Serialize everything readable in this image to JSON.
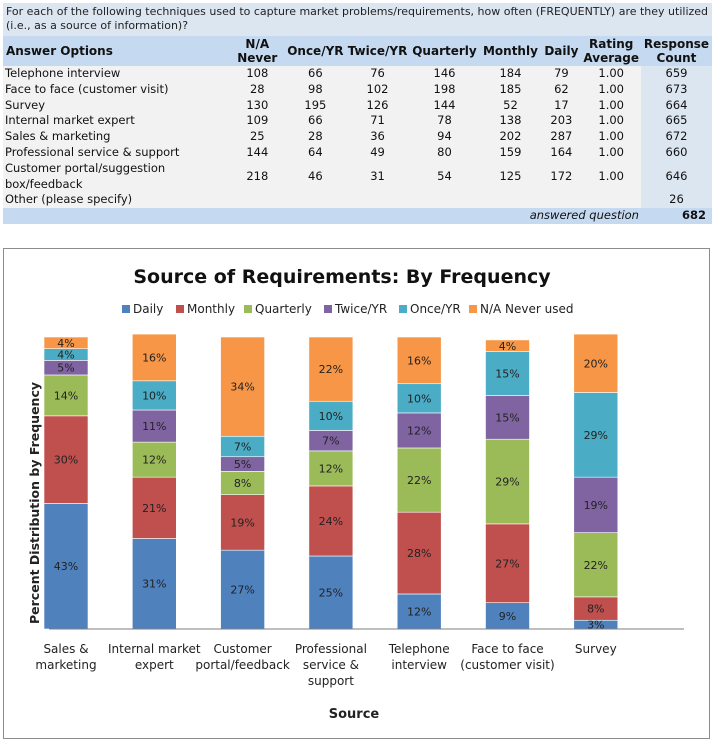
{
  "survey": {
    "question": "For each of the following techniques used to capture market problems/requirements, how often (FREQUENTLY) are they utilized (i.e., as a source of information)?",
    "headers": {
      "answer_options": "Answer Options",
      "na_line1": "N/A",
      "na_line2": "Never",
      "once": "Once/YR",
      "twice": "Twice/YR",
      "quarterly": "Quarterly",
      "monthly": "Monthly",
      "daily": "Daily",
      "rating_line1": "Rating",
      "rating_line2": "Average",
      "response_line1": "Response",
      "response_line2": "Count"
    },
    "rows": [
      {
        "option": "Telephone interview",
        "na": "108",
        "once": "66",
        "twice": "76",
        "quarterly": "146",
        "monthly": "184",
        "daily": "79",
        "rating": "1.00",
        "count": "659"
      },
      {
        "option": "Face to face (customer visit)",
        "na": "28",
        "once": "98",
        "twice": "102",
        "quarterly": "198",
        "monthly": "185",
        "daily": "62",
        "rating": "1.00",
        "count": "673"
      },
      {
        "option": "Survey",
        "na": "130",
        "once": "195",
        "twice": "126",
        "quarterly": "144",
        "monthly": "52",
        "daily": "17",
        "rating": "1.00",
        "count": "664"
      },
      {
        "option": "Internal market expert",
        "na": "109",
        "once": "66",
        "twice": "71",
        "quarterly": "78",
        "monthly": "138",
        "daily": "203",
        "rating": "1.00",
        "count": "665"
      },
      {
        "option": "Sales & marketing",
        "na": "25",
        "once": "28",
        "twice": "36",
        "quarterly": "94",
        "monthly": "202",
        "daily": "287",
        "rating": "1.00",
        "count": "672"
      },
      {
        "option": "Professional service & support",
        "na": "144",
        "once": "64",
        "twice": "49",
        "quarterly": "80",
        "monthly": "159",
        "daily": "164",
        "rating": "1.00",
        "count": "660"
      },
      {
        "option": "Customer portal/suggestion box/feedback",
        "na": "218",
        "once": "46",
        "twice": "31",
        "quarterly": "54",
        "monthly": "125",
        "daily": "172",
        "rating": "1.00",
        "count": "646"
      },
      {
        "option": "Other (please specify)",
        "na": "",
        "once": "",
        "twice": "",
        "quarterly": "",
        "monthly": "",
        "daily": "",
        "rating": "",
        "count": "26"
      }
    ],
    "answered_label": "answered question",
    "answered_value": "682"
  },
  "chart_data": {
    "type": "bar",
    "stacked": true,
    "title": "Source of Requirements: By Frequency",
    "xlabel": "Source",
    "ylabel": "Percent Distribution by Frequency",
    "ylim": [
      0,
      100
    ],
    "legend_position": "top",
    "categories": [
      [
        "Sales &",
        "marketing"
      ],
      [
        "Internal market",
        "expert"
      ],
      [
        "Customer",
        "portal/feedback"
      ],
      [
        "Professional",
        "service &",
        "support"
      ],
      [
        "Telephone",
        "interview"
      ],
      [
        "Face to face",
        "(customer visit)"
      ],
      [
        "Survey"
      ]
    ],
    "series": [
      {
        "name": "Daily",
        "color": "#4f81bd",
        "values": [
          43,
          31,
          27,
          25,
          12,
          9,
          3
        ]
      },
      {
        "name": "Monthly",
        "color": "#c0504d",
        "values": [
          30,
          21,
          19,
          24,
          28,
          27,
          8
        ]
      },
      {
        "name": "Quarterly",
        "color": "#9bbb59",
        "values": [
          14,
          12,
          8,
          12,
          22,
          29,
          22
        ]
      },
      {
        "name": "Twice/YR",
        "color": "#8064a2",
        "values": [
          5,
          11,
          5,
          7,
          12,
          15,
          19
        ]
      },
      {
        "name": "Once/YR",
        "color": "#4bacc6",
        "values": [
          4,
          10,
          7,
          10,
          10,
          15,
          29
        ]
      },
      {
        "name": "N/A Never used",
        "color": "#f79646",
        "values": [
          4,
          16,
          34,
          22,
          16,
          4,
          20
        ]
      }
    ]
  }
}
